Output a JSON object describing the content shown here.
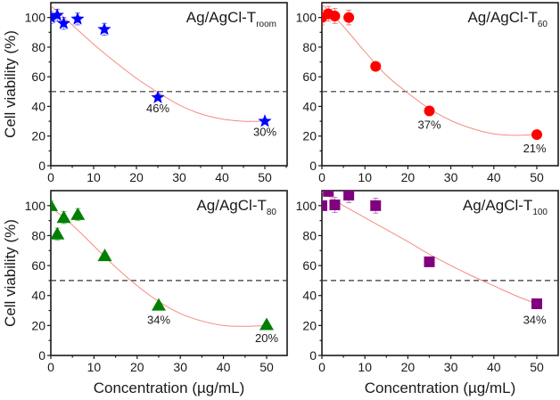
{
  "chart_data": [
    {
      "type": "scatter",
      "panel": "top-left",
      "title": "Ag/AgCl-T",
      "title_subscript": "room",
      "xlabel": "",
      "ylabel": "Cell viability (%)",
      "xlim": [
        0,
        55
      ],
      "ylim": [
        0,
        110
      ],
      "xticks": [
        0,
        10,
        20,
        30,
        40,
        50
      ],
      "yticks": [
        0,
        20,
        40,
        60,
        80,
        100
      ],
      "reference_line_y": 50,
      "marker": "star",
      "color": "#0000ff",
      "x": [
        0,
        1.5,
        3,
        6.25,
        12.5,
        25,
        50
      ],
      "y": [
        100,
        101.5,
        96,
        99,
        92,
        46,
        30
      ],
      "errors": [
        4,
        4,
        4,
        4,
        4,
        2,
        1
      ],
      "fit": {
        "x": [
          0,
          5,
          10,
          15,
          20,
          25,
          30,
          35,
          40,
          45,
          50
        ],
        "y": [
          108,
          95,
          82,
          70,
          59,
          49.5,
          41,
          35,
          31.5,
          30,
          30
        ]
      },
      "annotations": [
        {
          "text": "46%",
          "x": 25,
          "y": 36
        },
        {
          "text": "30%",
          "x": 50,
          "y": 20
        }
      ]
    },
    {
      "type": "scatter",
      "panel": "top-right",
      "title": "Ag/AgCl-T",
      "title_subscript": "60",
      "xlabel": "",
      "ylabel": "",
      "xlim": [
        0,
        55
      ],
      "ylim": [
        0,
        110
      ],
      "xticks": [
        0,
        10,
        20,
        30,
        40,
        50
      ],
      "yticks": [
        0,
        20,
        40,
        60,
        80,
        100
      ],
      "reference_line_y": 50,
      "marker": "circle",
      "color": "#ff0000",
      "x": [
        0,
        1.5,
        3,
        6.25,
        12.5,
        25,
        50
      ],
      "y": [
        100,
        102.5,
        101,
        100,
        67,
        37,
        21
      ],
      "errors": [
        5,
        5,
        5,
        5,
        2,
        1.5,
        1
      ],
      "fit": {
        "x": [
          0,
          5,
          10,
          15,
          20,
          25,
          30,
          35,
          40,
          45,
          50
        ],
        "y": [
          109,
          94,
          77,
          61,
          49,
          38.5,
          30.5,
          25,
          21.5,
          20.5,
          21
        ]
      },
      "annotations": [
        {
          "text": "37%",
          "x": 25,
          "y": 25
        },
        {
          "text": "21%",
          "x": 49.5,
          "y": 9
        }
      ]
    },
    {
      "type": "scatter",
      "panel": "bottom-left",
      "title": "Ag/AgCl-T",
      "title_subscript": "80",
      "xlabel": "Concentration (µg/mL)",
      "ylabel": "Cell viability (%)",
      "xlim": [
        0,
        55
      ],
      "ylim": [
        0,
        110
      ],
      "xticks": [
        0,
        10,
        20,
        30,
        40,
        50
      ],
      "yticks": [
        0,
        20,
        40,
        60,
        80,
        100
      ],
      "reference_line_y": 50,
      "marker": "triangle",
      "color": "#008000",
      "x": [
        0,
        1.5,
        3,
        6.25,
        12.5,
        25,
        50
      ],
      "y": [
        100,
        81,
        92,
        94,
        66.5,
        33.5,
        20.5
      ],
      "errors": [
        3,
        4,
        4,
        4,
        2,
        1.5,
        1.5
      ],
      "fit": {
        "x": [
          0,
          5,
          10,
          15,
          20,
          25,
          30,
          35,
          40,
          45,
          50
        ],
        "y": [
          99,
          87,
          73,
          59,
          46.5,
          36,
          28,
          23,
          20,
          19.5,
          20
        ]
      },
      "annotations": [
        {
          "text": "34%",
          "x": 25,
          "y": 21
        },
        {
          "text": "20%",
          "x": 50,
          "y": 9
        }
      ]
    },
    {
      "type": "scatter",
      "panel": "bottom-right",
      "title": "Ag/AgCl-T",
      "title_subscript": "100",
      "xlabel": "Concentration (µg/mL)",
      "ylabel": "",
      "xlim": [
        0,
        55
      ],
      "ylim": [
        0,
        110
      ],
      "xticks": [
        0,
        10,
        20,
        30,
        40,
        50
      ],
      "yticks": [
        0,
        20,
        40,
        60,
        80,
        100
      ],
      "reference_line_y": 50,
      "marker": "square",
      "color": "#800080",
      "x": [
        0,
        1.5,
        3,
        6.25,
        12.5,
        25,
        50
      ],
      "y": [
        100,
        109.5,
        100.5,
        107,
        100,
        62.5,
        34.5
      ],
      "errors": [
        3,
        3,
        5,
        5,
        5,
        2,
        1.5
      ],
      "fit": {
        "x": [
          0,
          5,
          10,
          15,
          20,
          25,
          30,
          35,
          40,
          45,
          50
        ],
        "y": [
          109,
          100,
          92,
          84,
          76,
          67.5,
          60,
          53,
          46.5,
          40,
          34.5
        ]
      },
      "annotations": [
        {
          "text": "34%",
          "x": 49.5,
          "y": 21
        }
      ]
    }
  ]
}
